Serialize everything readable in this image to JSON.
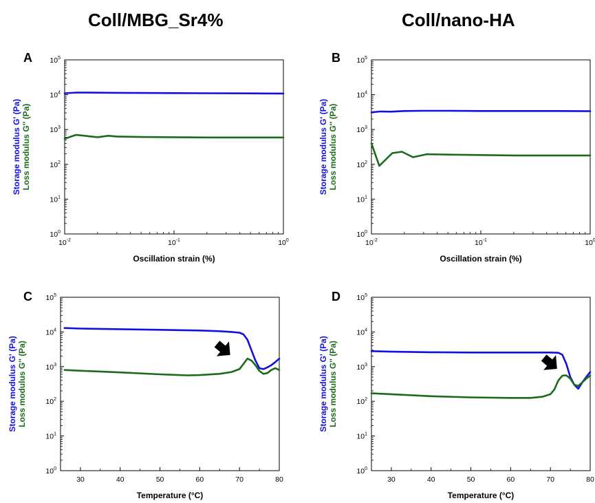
{
  "columns": [
    {
      "title": "Coll/MBG_Sr4%"
    },
    {
      "title": "Coll/nano-HA"
    }
  ],
  "colors": {
    "storage": "#1010e0",
    "loss": "#1a6a1a",
    "arrow": "#000000"
  },
  "chart_data": [
    {
      "panel": "A",
      "type": "line",
      "xlabel": "Oscillation strain (%)",
      "ylabel_storage": "Storage modulus G' (Pa)",
      "ylabel_loss": "Loss modulus G'' (Pa)",
      "xscale": "log",
      "yscale": "log",
      "xlim": [
        0.01,
        1
      ],
      "ylim": [
        1,
        100000
      ],
      "xticks": [
        {
          "base": "10",
          "exp": "-2",
          "v": 0.01
        },
        {
          "base": "10",
          "exp": "-1",
          "v": 0.1
        },
        {
          "base": "10",
          "exp": "0",
          "v": 1
        }
      ],
      "yticks": [
        {
          "base": "10",
          "exp": "0",
          "v": 1
        },
        {
          "base": "10",
          "exp": "1",
          "v": 10
        },
        {
          "base": "10",
          "exp": "2",
          "v": 100
        },
        {
          "base": "10",
          "exp": "3",
          "v": 1000
        },
        {
          "base": "10",
          "exp": "4",
          "v": 10000
        },
        {
          "base": "10",
          "exp": "5",
          "v": 100000
        }
      ],
      "series": [
        {
          "role": "storage",
          "x": [
            0.01,
            0.013,
            0.02,
            0.03,
            0.05,
            0.1,
            0.2,
            0.5,
            1.0
          ],
          "y": [
            11000,
            11500,
            11400,
            11300,
            11200,
            11100,
            11000,
            10900,
            10800
          ]
        },
        {
          "role": "loss",
          "x": [
            0.01,
            0.0127,
            0.016,
            0.02,
            0.025,
            0.03,
            0.05,
            0.1,
            0.2,
            0.5,
            1.0
          ],
          "y": [
            540,
            700,
            650,
            600,
            660,
            630,
            610,
            600,
            590,
            590,
            590
          ]
        }
      ]
    },
    {
      "panel": "B",
      "type": "line",
      "xlabel": "Oscillation strain (%)",
      "ylabel_storage": "Storage modulus G' (Pa)",
      "ylabel_loss": "Loss modulus G'' (Pa)",
      "xscale": "log",
      "yscale": "log",
      "xlim": [
        0.01,
        1
      ],
      "ylim": [
        1,
        100000
      ],
      "xticks": [
        {
          "base": "10",
          "exp": "-2",
          "v": 0.01
        },
        {
          "base": "10",
          "exp": "-1",
          "v": 0.1
        },
        {
          "base": "10",
          "exp": "0",
          "v": 1
        }
      ],
      "yticks": [
        {
          "base": "10",
          "exp": "0",
          "v": 1
        },
        {
          "base": "10",
          "exp": "1",
          "v": 10
        },
        {
          "base": "10",
          "exp": "2",
          "v": 100
        },
        {
          "base": "10",
          "exp": "3",
          "v": 1000
        },
        {
          "base": "10",
          "exp": "4",
          "v": 10000
        },
        {
          "base": "10",
          "exp": "5",
          "v": 100000
        }
      ],
      "series": [
        {
          "role": "storage",
          "x": [
            0.01,
            0.012,
            0.015,
            0.02,
            0.03,
            0.05,
            0.1,
            0.2,
            0.5,
            1.0
          ],
          "y": [
            3100,
            3300,
            3250,
            3400,
            3450,
            3450,
            3400,
            3400,
            3400,
            3350
          ]
        },
        {
          "role": "loss",
          "x": [
            0.01,
            0.0118,
            0.0155,
            0.019,
            0.024,
            0.032,
            0.05,
            0.1,
            0.2,
            0.5,
            1.0
          ],
          "y": [
            400,
            90,
            210,
            230,
            160,
            195,
            190,
            185,
            180,
            180,
            180
          ]
        }
      ]
    },
    {
      "panel": "C",
      "type": "line",
      "xlabel": "Temperature (°C)",
      "ylabel_storage": "Storage modulus G' (Pa)",
      "ylabel_loss": "Loss modulus G'' (Pa)",
      "xscale": "linear",
      "yscale": "log",
      "xlim": [
        25,
        80
      ],
      "ylim": [
        1,
        100000
      ],
      "xticks": [
        {
          "label": "30",
          "v": 30
        },
        {
          "label": "40",
          "v": 40
        },
        {
          "label": "50",
          "v": 50
        },
        {
          "label": "60",
          "v": 60
        },
        {
          "label": "70",
          "v": 70
        },
        {
          "label": "80",
          "v": 80
        }
      ],
      "yticks": [
        {
          "base": "10",
          "exp": "0",
          "v": 1
        },
        {
          "base": "10",
          "exp": "1",
          "v": 10
        },
        {
          "base": "10",
          "exp": "2",
          "v": 100
        },
        {
          "base": "10",
          "exp": "3",
          "v": 1000
        },
        {
          "base": "10",
          "exp": "4",
          "v": 10000
        },
        {
          "base": "10",
          "exp": "5",
          "v": 100000
        }
      ],
      "arrow": {
        "x": 67,
        "y": 2500
      },
      "series": [
        {
          "role": "storage",
          "x": [
            26,
            30,
            40,
            50,
            60,
            65,
            68,
            70,
            71,
            72,
            73,
            74,
            75,
            76,
            77,
            78,
            79,
            80
          ],
          "y": [
            13000,
            12500,
            12000,
            11500,
            11000,
            10500,
            10000,
            9500,
            8500,
            6000,
            3000,
            1500,
            900,
            850,
            950,
            1100,
            1350,
            1700
          ]
        },
        {
          "role": "loss",
          "x": [
            26,
            30,
            40,
            50,
            57,
            60,
            65,
            68,
            70,
            71,
            72,
            73,
            74,
            75,
            76,
            77,
            78,
            79,
            80
          ],
          "y": [
            800,
            760,
            680,
            600,
            560,
            570,
            620,
            700,
            850,
            1200,
            1700,
            1500,
            1100,
            750,
            620,
            650,
            800,
            900,
            800
          ]
        }
      ]
    },
    {
      "panel": "D",
      "type": "line",
      "xlabel": "Temperature (°C)",
      "ylabel_storage": "Storage modulus G' (Pa)",
      "ylabel_loss": "Loss modulus G'' (Pa)",
      "xscale": "linear",
      "yscale": "log",
      "xlim": [
        25,
        80
      ],
      "ylim": [
        1,
        100000
      ],
      "xticks": [
        {
          "label": "30",
          "v": 30
        },
        {
          "label": "40",
          "v": 40
        },
        {
          "label": "50",
          "v": 50
        },
        {
          "label": "60",
          "v": 60
        },
        {
          "label": "70",
          "v": 70
        },
        {
          "label": "80",
          "v": 80
        }
      ],
      "yticks": [
        {
          "base": "10",
          "exp": "0",
          "v": 1
        },
        {
          "base": "10",
          "exp": "1",
          "v": 10
        },
        {
          "base": "10",
          "exp": "2",
          "v": 100
        },
        {
          "base": "10",
          "exp": "3",
          "v": 1000
        },
        {
          "base": "10",
          "exp": "4",
          "v": 10000
        },
        {
          "base": "10",
          "exp": "5",
          "v": 100000
        }
      ],
      "arrow": {
        "x": 71,
        "y": 1000
      },
      "series": [
        {
          "role": "storage",
          "x": [
            25,
            30,
            40,
            50,
            60,
            70,
            72,
            73,
            74,
            75,
            76,
            77,
            78,
            79,
            80
          ],
          "y": [
            2800,
            2700,
            2600,
            2550,
            2550,
            2550,
            2500,
            2200,
            1200,
            500,
            300,
            230,
            350,
            500,
            700
          ]
        },
        {
          "role": "loss",
          "x": [
            25,
            30,
            40,
            50,
            60,
            65,
            68,
            70,
            71,
            72,
            73,
            74,
            75,
            76,
            77,
            78,
            79,
            80
          ],
          "y": [
            170,
            160,
            140,
            130,
            125,
            125,
            135,
            160,
            220,
            400,
            550,
            560,
            450,
            300,
            280,
            350,
            450,
            550
          ]
        }
      ]
    }
  ]
}
